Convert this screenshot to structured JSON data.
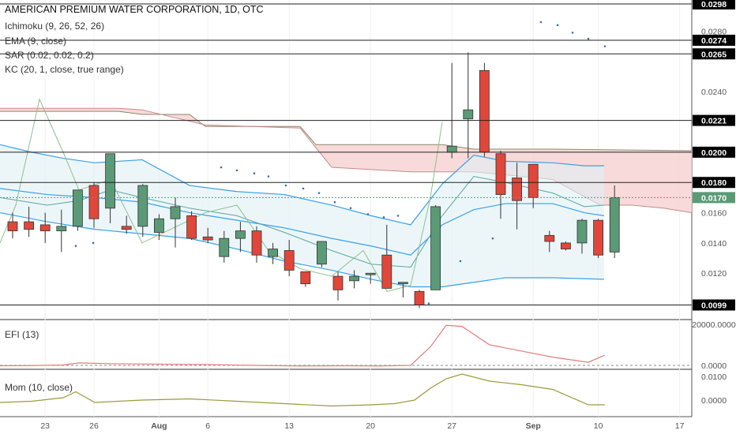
{
  "header": {
    "title": "AMERICAN PREMIUM WATER CORPORATION, 1D, OTC",
    "indicators": [
      "Ichimoku (9, 26, 52, 26)",
      "EMA (9, close)",
      "SAR (0.02, 0.02, 0.2)",
      "KC (20, 1, close, true range)"
    ]
  },
  "panes": {
    "efi_label": "EFI (13)",
    "mom_label": "Mom (10, close)"
  },
  "colors": {
    "up": "#5b9a77",
    "down": "#e0473a",
    "kc": "#3aa0e8",
    "cloud_bear": "#f7d3d3",
    "cloud_bull": "#dff0f5",
    "efi": "#e87b7b",
    "mom": "#9a9a3a"
  },
  "chart_data": {
    "type": "candlestick",
    "title": "AMERICAN PREMIUM WATER CORPORATION, 1D, OTC",
    "ylim": [
      0.0093,
      0.0298
    ],
    "price_ticks": [
      "0.0280",
      "0.0240",
      "0.0160",
      "0.0140",
      "0.0120"
    ],
    "price_tick_values": [
      0.028,
      0.024,
      0.016,
      0.014,
      0.012
    ],
    "horizontal_levels": [
      {
        "label": "0.0298",
        "value": 0.0298,
        "style": "line"
      },
      {
        "label": "0.0274",
        "value": 0.0274,
        "style": "line"
      },
      {
        "label": "0.0265",
        "value": 0.0265,
        "style": "line"
      },
      {
        "label": "0.0221",
        "value": 0.0221,
        "style": "line"
      },
      {
        "label": "0.0200",
        "value": 0.02,
        "style": "line"
      },
      {
        "label": "0.0180",
        "value": 0.018,
        "style": "line"
      },
      {
        "label": "0.0099",
        "value": 0.0099,
        "style": "line"
      }
    ],
    "current_price": {
      "label": "0.0170",
      "value": 0.017
    },
    "x_tick_labels": [
      "23",
      "26",
      "Aug",
      "6",
      "13",
      "20",
      "27",
      "Sep",
      "10",
      "17"
    ],
    "x_tick_index": [
      2,
      5,
      9,
      12,
      17,
      22,
      27,
      32,
      36,
      41
    ],
    "candles": [
      {
        "o": 0.0154,
        "h": 0.016,
        "l": 0.0143,
        "c": 0.0148
      },
      {
        "o": 0.0154,
        "h": 0.0164,
        "l": 0.0144,
        "c": 0.0149
      },
      {
        "o": 0.0152,
        "h": 0.016,
        "l": 0.014,
        "c": 0.0148
      },
      {
        "o": 0.0148,
        "h": 0.0162,
        "l": 0.0134,
        "c": 0.0151
      },
      {
        "o": 0.0151,
        "h": 0.0174,
        "l": 0.0148,
        "c": 0.0175
      },
      {
        "o": 0.0178,
        "h": 0.018,
        "l": 0.015,
        "c": 0.0156
      },
      {
        "o": 0.0163,
        "h": 0.0199,
        "l": 0.0153,
        "c": 0.0199
      },
      {
        "o": 0.0151,
        "h": 0.0158,
        "l": 0.0146,
        "c": 0.0149
      },
      {
        "o": 0.0151,
        "h": 0.0179,
        "l": 0.0144,
        "c": 0.0178
      },
      {
        "o": 0.0147,
        "h": 0.0159,
        "l": 0.0142,
        "c": 0.0156
      },
      {
        "o": 0.0156,
        "h": 0.017,
        "l": 0.0137,
        "c": 0.0164
      },
      {
        "o": 0.0158,
        "h": 0.0161,
        "l": 0.0142,
        "c": 0.0143
      },
      {
        "o": 0.0144,
        "h": 0.015,
        "l": 0.014,
        "c": 0.0142
      },
      {
        "o": 0.0131,
        "h": 0.0148,
        "l": 0.0127,
        "c": 0.0143
      },
      {
        "o": 0.0143,
        "h": 0.0154,
        "l": 0.0134,
        "c": 0.0148
      },
      {
        "o": 0.0148,
        "h": 0.0151,
        "l": 0.0127,
        "c": 0.0132
      },
      {
        "o": 0.0131,
        "h": 0.014,
        "l": 0.0126,
        "c": 0.0136
      },
      {
        "o": 0.0135,
        "h": 0.0142,
        "l": 0.0118,
        "c": 0.0122
      },
      {
        "o": 0.0121,
        "h": 0.0121,
        "l": 0.0111,
        "c": 0.0113
      },
      {
        "o": 0.0126,
        "h": 0.0141,
        "l": 0.0124,
        "c": 0.0141
      },
      {
        "o": 0.0118,
        "h": 0.0121,
        "l": 0.0102,
        "c": 0.0109
      },
      {
        "o": 0.0115,
        "h": 0.0122,
        "l": 0.011,
        "c": 0.0118
      },
      {
        "o": 0.0119,
        "h": 0.012,
        "l": 0.0113,
        "c": 0.012
      },
      {
        "o": 0.0132,
        "h": 0.0152,
        "l": 0.011,
        "c": 0.011
      },
      {
        "o": 0.0113,
        "h": 0.0114,
        "l": 0.0104,
        "c": 0.0114
      },
      {
        "o": 0.0108,
        "h": 0.0109,
        "l": 0.0097,
        "c": 0.0099
      },
      {
        "o": 0.0109,
        "h": 0.0165,
        "l": 0.0109,
        "c": 0.0164
      },
      {
        "o": 0.02,
        "h": 0.0259,
        "l": 0.0196,
        "c": 0.0204
      },
      {
        "o": 0.0222,
        "h": 0.0266,
        "l": 0.0196,
        "c": 0.0228
      },
      {
        "o": 0.0254,
        "h": 0.0259,
        "l": 0.0197,
        "c": 0.02
      },
      {
        "o": 0.0199,
        "h": 0.0201,
        "l": 0.0156,
        "c": 0.0172
      },
      {
        "o": 0.0183,
        "h": 0.0193,
        "l": 0.0149,
        "c": 0.0168
      },
      {
        "o": 0.0192,
        "h": 0.0192,
        "l": 0.0163,
        "c": 0.017
      },
      {
        "o": 0.0145,
        "h": 0.0148,
        "l": 0.0134,
        "c": 0.0141
      },
      {
        "o": 0.014,
        "h": 0.0141,
        "l": 0.0135,
        "c": 0.0136
      },
      {
        "o": 0.014,
        "h": 0.0156,
        "l": 0.0133,
        "c": 0.0155
      },
      {
        "o": 0.0155,
        "h": 0.0156,
        "l": 0.013,
        "c": 0.0132
      },
      {
        "o": 0.0134,
        "h": 0.0178,
        "l": 0.013,
        "c": 0.017
      }
    ],
    "efi_ticks": [
      "20000.0000",
      "0.0000"
    ],
    "efi_tick_values": [
      20000,
      0
    ],
    "mom_ticks": [
      "0.0100",
      "0.0000"
    ],
    "mom_tick_values": [
      0.01,
      0.0
    ]
  }
}
